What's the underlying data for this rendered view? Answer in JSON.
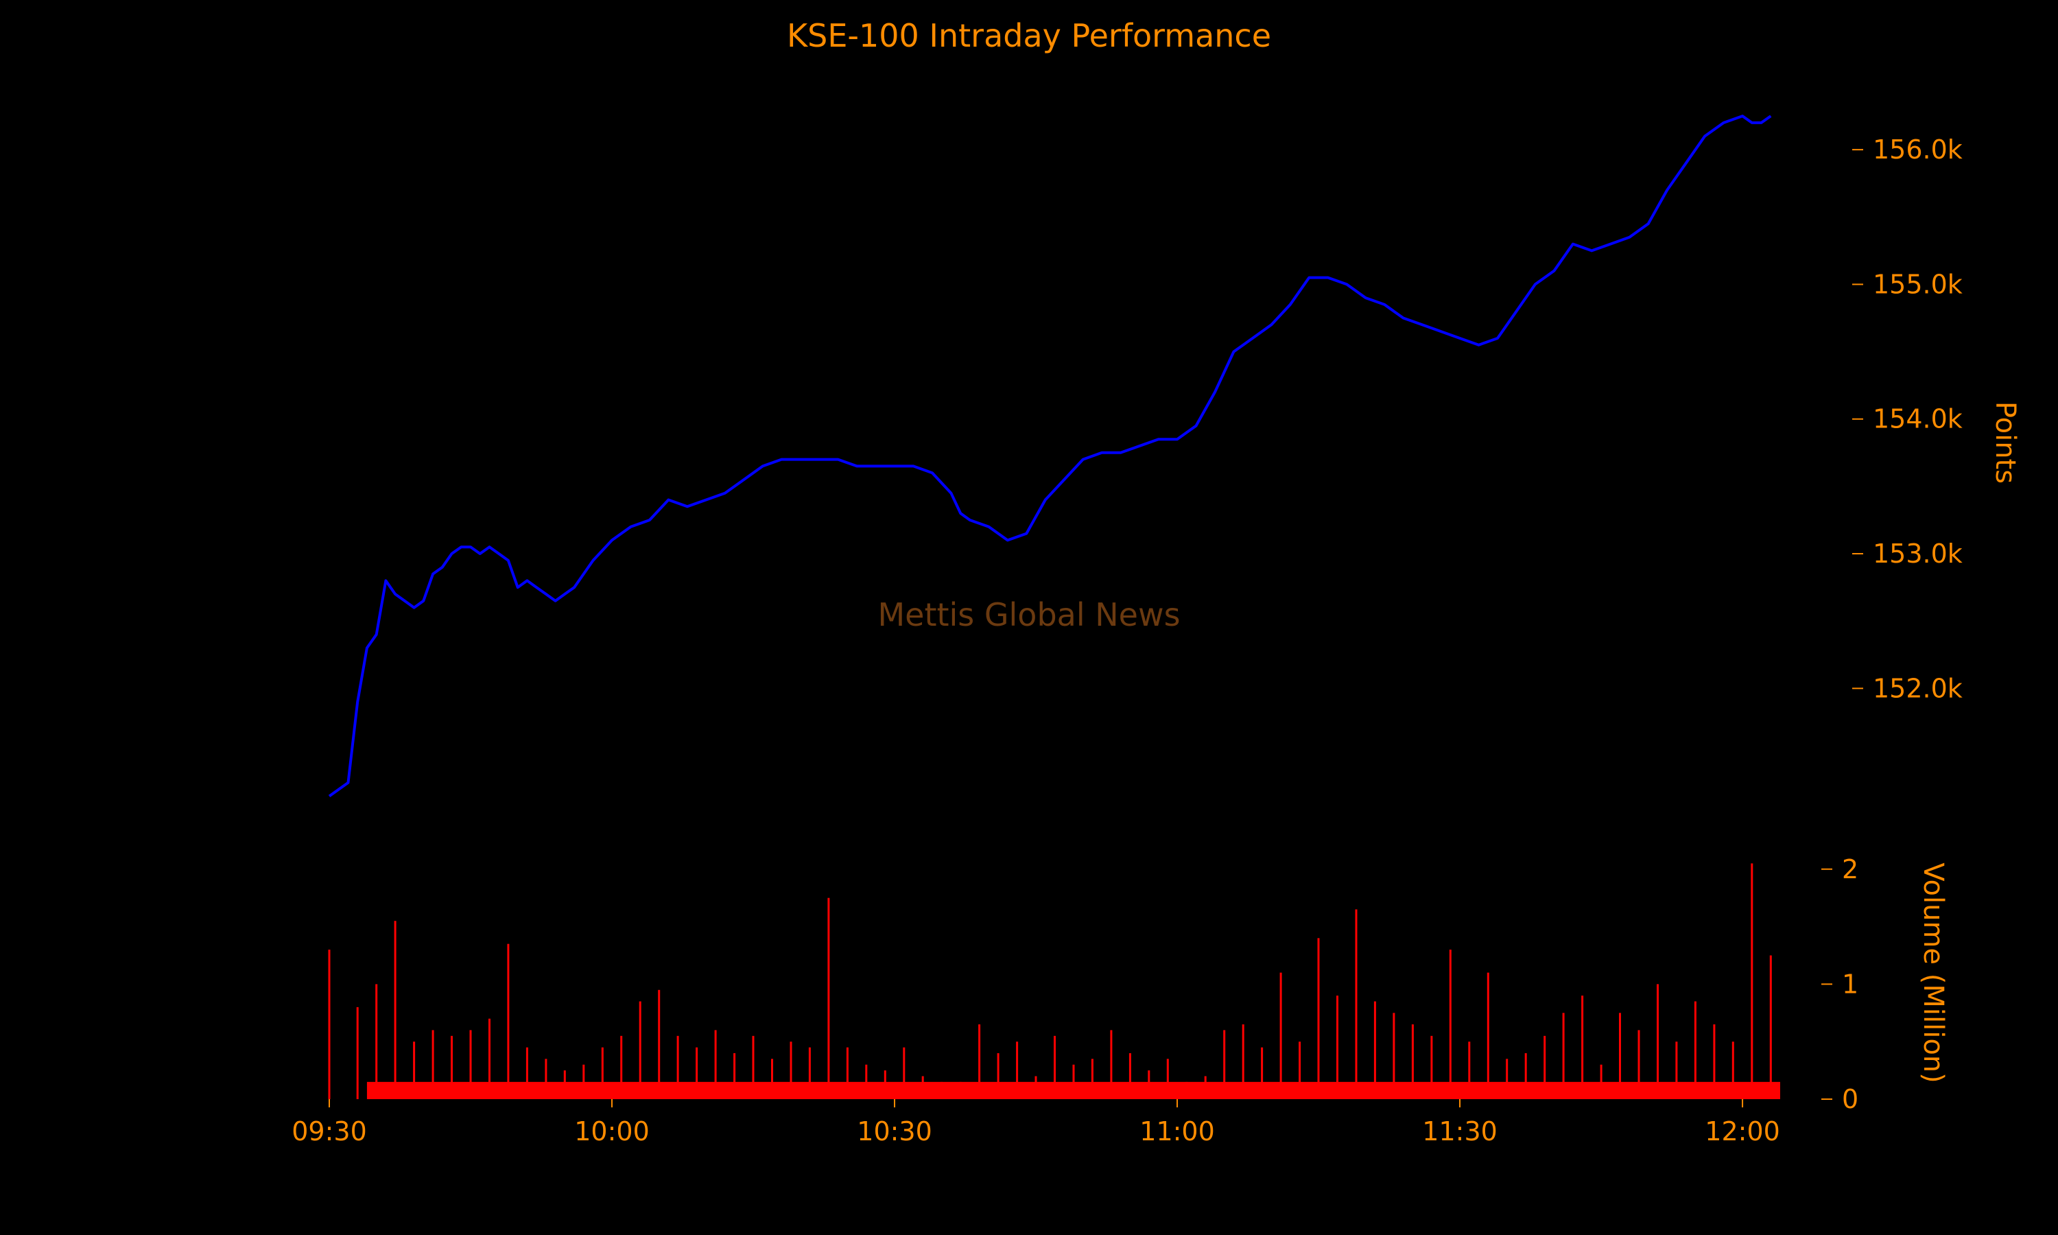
{
  "chart_data": {
    "type": "line",
    "title": "KSE-100 Intraday Performance",
    "watermark": "Mettis Global News",
    "colors": {
      "background": "#000000",
      "text": "#FF8C00",
      "line": "#0000FF",
      "volume": "#FF0000",
      "watermark": "#6B3A10"
    },
    "x_axis": {
      "ticks": [
        "09:30",
        "10:00",
        "10:30",
        "11:00",
        "11:30",
        "12:00"
      ],
      "range": [
        "09:30",
        "12:04"
      ]
    },
    "price_axis": {
      "label": "Points",
      "ticks": [
        "152.0k",
        "153.0k",
        "154.0k",
        "155.0k",
        "156.0k"
      ],
      "tick_values": [
        152000,
        153000,
        154000,
        155000,
        156000
      ],
      "ylim": [
        151100,
        156500
      ],
      "position": "right"
    },
    "volume_axis": {
      "label": "Volume (Million)",
      "ticks": [
        "0",
        "1",
        "2"
      ],
      "tick_values": [
        0,
        1,
        2
      ],
      "ylim": [
        0,
        2.1
      ],
      "position": "right"
    },
    "series": [
      {
        "type": "line",
        "x": [
          "09:30",
          "09:32",
          "09:33",
          "09:34",
          "09:35",
          "09:36",
          "09:37",
          "09:38",
          "09:39",
          "09:40",
          "09:41",
          "09:42",
          "09:43",
          "09:44",
          "09:45",
          "09:46",
          "09:47",
          "09:48",
          "09:49",
          "09:50",
          "09:51",
          "09:52",
          "09:53",
          "09:54",
          "09:55",
          "09:56",
          "09:57",
          "09:58",
          "10:00",
          "10:02",
          "10:04",
          "10:06",
          "10:08",
          "10:10",
          "10:12",
          "10:14",
          "10:16",
          "10:18",
          "10:20",
          "10:22",
          "10:24",
          "10:26",
          "10:28",
          "10:30",
          "10:32",
          "10:34",
          "10:36",
          "10:37",
          "10:38",
          "10:40",
          "10:42",
          "10:44",
          "10:46",
          "10:48",
          "10:50",
          "10:52",
          "10:54",
          "10:56",
          "10:58",
          "11:00",
          "11:02",
          "11:04",
          "11:06",
          "11:08",
          "11:10",
          "11:12",
          "11:14",
          "11:16",
          "11:18",
          "11:20",
          "11:22",
          "11:24",
          "11:26",
          "11:28",
          "11:30",
          "11:32",
          "11:34",
          "11:36",
          "11:38",
          "11:40",
          "11:42",
          "11:44",
          "11:46",
          "11:48",
          "11:50",
          "11:52",
          "11:54",
          "11:56",
          "11:58",
          "12:00",
          "12:01",
          "12:02",
          "12:03"
        ],
        "y": [
          151200,
          151300,
          151900,
          152300,
          152400,
          152800,
          152700,
          152650,
          152600,
          152650,
          152850,
          152900,
          153000,
          153050,
          153050,
          153000,
          153050,
          153000,
          152950,
          152750,
          152800,
          152750,
          152700,
          152650,
          152700,
          152750,
          152850,
          152950,
          153100,
          153200,
          153250,
          153400,
          153350,
          153400,
          153450,
          153550,
          153650,
          153700,
          153700,
          153700,
          153700,
          153650,
          153650,
          153650,
          153650,
          153600,
          153450,
          153300,
          153250,
          153200,
          153100,
          153150,
          153400,
          153550,
          153700,
          153750,
          153750,
          153800,
          153850,
          153850,
          153950,
          154200,
          154500,
          154600,
          154700,
          154850,
          155050,
          155050,
          155000,
          154900,
          154850,
          154750,
          154700,
          154650,
          154600,
          154550,
          154600,
          154800,
          155000,
          155100,
          155300,
          155250,
          155300,
          155350,
          155450,
          155700,
          155900,
          156100,
          156200,
          156250,
          156200,
          156200,
          156250
        ]
      },
      {
        "type": "bar",
        "name": "Volume (Million)",
        "x": [
          "09:30",
          "09:33",
          "09:35",
          "09:37",
          "09:39",
          "09:41",
          "09:43",
          "09:45",
          "09:47",
          "09:49",
          "09:51",
          "09:53",
          "09:55",
          "09:57",
          "09:59",
          "10:01",
          "10:03",
          "10:05",
          "10:07",
          "10:09",
          "10:11",
          "10:13",
          "10:15",
          "10:17",
          "10:19",
          "10:21",
          "10:23",
          "10:25",
          "10:27",
          "10:29",
          "10:31",
          "10:33",
          "10:35",
          "10:37",
          "10:39",
          "10:41",
          "10:43",
          "10:45",
          "10:47",
          "10:49",
          "10:51",
          "10:53",
          "10:55",
          "10:57",
          "10:59",
          "11:01",
          "11:03",
          "11:05",
          "11:07",
          "11:09",
          "11:11",
          "11:13",
          "11:15",
          "11:17",
          "11:19",
          "11:21",
          "11:23",
          "11:25",
          "11:27",
          "11:29",
          "11:31",
          "11:33",
          "11:35",
          "11:37",
          "11:39",
          "11:41",
          "11:43",
          "11:45",
          "11:47",
          "11:49",
          "11:51",
          "11:53",
          "11:55",
          "11:57",
          "11:59",
          "12:01",
          "12:03"
        ],
        "values": [
          1.3,
          0.8,
          1.0,
          1.55,
          0.5,
          0.6,
          0.55,
          0.6,
          0.7,
          1.35,
          0.45,
          0.35,
          0.25,
          0.3,
          0.45,
          0.55,
          0.85,
          0.95,
          0.55,
          0.45,
          0.6,
          0.4,
          0.55,
          0.35,
          0.5,
          0.45,
          1.75,
          0.45,
          0.3,
          0.25,
          0.45,
          0.2,
          0.15,
          0.15,
          0.65,
          0.4,
          0.5,
          0.2,
          0.55,
          0.3,
          0.35,
          0.6,
          0.4,
          0.25,
          0.35,
          0.15,
          0.2,
          0.6,
          0.65,
          0.45,
          1.1,
          0.5,
          1.4,
          0.9,
          1.65,
          0.85,
          0.75,
          0.65,
          0.55,
          1.3,
          0.5,
          1.1,
          0.35,
          0.4,
          0.55,
          0.75,
          0.9,
          0.3,
          0.75,
          0.6,
          1.0,
          0.5,
          0.85,
          0.65,
          0.5,
          2.05,
          1.25
        ]
      }
    ]
  }
}
